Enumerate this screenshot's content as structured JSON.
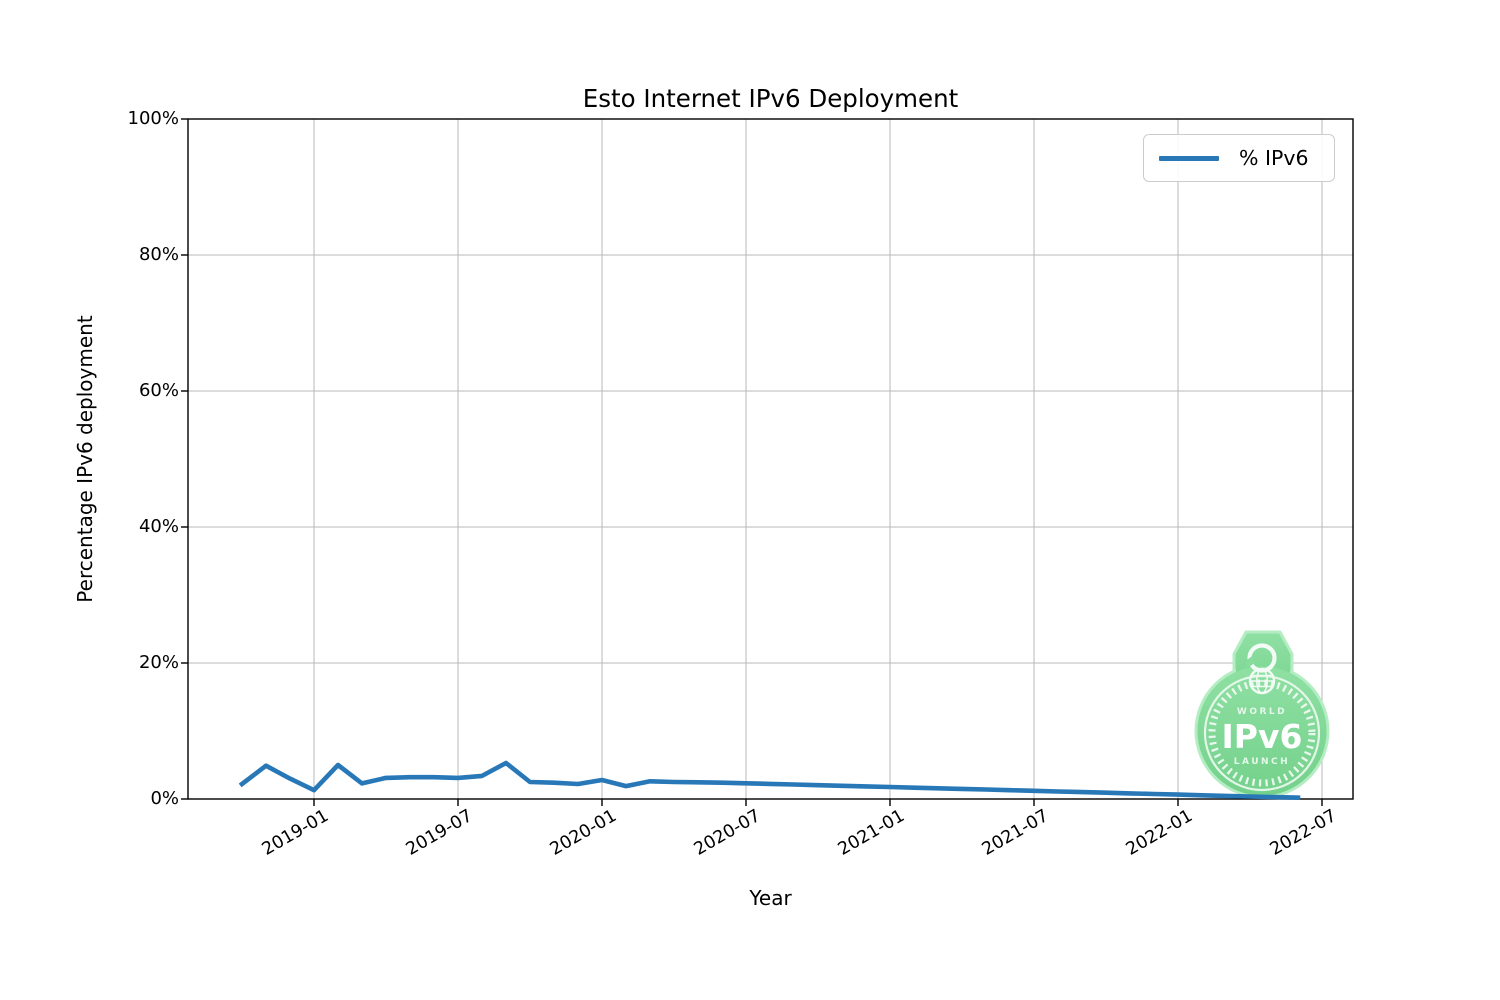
{
  "title": "Esto Internet IPv6 Deployment",
  "axes": {
    "x_label": "Year",
    "y_label": "Percentage IPv6 deployment",
    "x_tick_labels": [
      "2019-01",
      "2019-07",
      "2020-01",
      "2020-07",
      "2021-01",
      "2021-07",
      "2022-01",
      "2022-07"
    ],
    "y_tick_labels": [
      "0%",
      "20%",
      "40%",
      "60%",
      "80%",
      "100%"
    ]
  },
  "legend": {
    "label": "% IPv6",
    "line_color": "#2878b8"
  },
  "badge": {
    "word_top": "WORLD",
    "word_main": "IPv6",
    "word_bottom": "LAUNCH"
  },
  "colors": {
    "line": "#2878b8",
    "grid": "#b8b8b8",
    "spine": "#000000",
    "badge_green": "#82da97",
    "badge_green_dark": "#74d18b",
    "badge_green_edge": "#b5edc3",
    "badge_text_light": "#e3f8ea",
    "badge_text_white": "#ffffff"
  },
  "chart_data": {
    "type": "line",
    "title": "Esto Internet IPv6 Deployment",
    "xlabel": "Year",
    "ylabel": "Percentage IPv6 deployment",
    "ylim": [
      0,
      100
    ],
    "y_ticks": [
      0,
      20,
      40,
      60,
      80,
      100
    ],
    "x_ticks": [
      "2019-01",
      "2019-07",
      "2020-01",
      "2020-07",
      "2021-01",
      "2021-07",
      "2022-01",
      "2022-07"
    ],
    "grid": true,
    "legend_position": "upper right",
    "series": [
      {
        "name": "% IPv6",
        "color": "#2878b8",
        "x": [
          "2018-10",
          "2018-11",
          "2018-12",
          "2019-01",
          "2019-02",
          "2019-03",
          "2019-04",
          "2019-05",
          "2019-06",
          "2019-07",
          "2019-08",
          "2019-09",
          "2019-10",
          "2019-11",
          "2019-12",
          "2020-01",
          "2020-02",
          "2020-03",
          "2020-04",
          "2020-05",
          "2020-06",
          "2020-07",
          "2020-08",
          "2020-09",
          "2020-10",
          "2020-11",
          "2020-12",
          "2021-01",
          "2021-02",
          "2021-03",
          "2021-04",
          "2021-05",
          "2021-06",
          "2021-07",
          "2021-08",
          "2021-09",
          "2021-10",
          "2021-11",
          "2021-12",
          "2022-01",
          "2022-02",
          "2022-03",
          "2022-04",
          "2022-05",
          "2022-06"
        ],
        "values": [
          2.2,
          4.9,
          3.0,
          1.3,
          5.0,
          2.3,
          3.1,
          3.2,
          3.2,
          3.1,
          3.4,
          5.3,
          2.5,
          2.4,
          2.2,
          2.8,
          1.9,
          2.6,
          2.5,
          2.45,
          2.4,
          2.31,
          2.22,
          2.13,
          2.03,
          1.94,
          1.85,
          1.76,
          1.66,
          1.57,
          1.48,
          1.39,
          1.29,
          1.2,
          1.11,
          1.02,
          0.92,
          0.83,
          0.74,
          0.65,
          0.55,
          0.46,
          0.37,
          0.28,
          0.2
        ]
      }
    ]
  }
}
